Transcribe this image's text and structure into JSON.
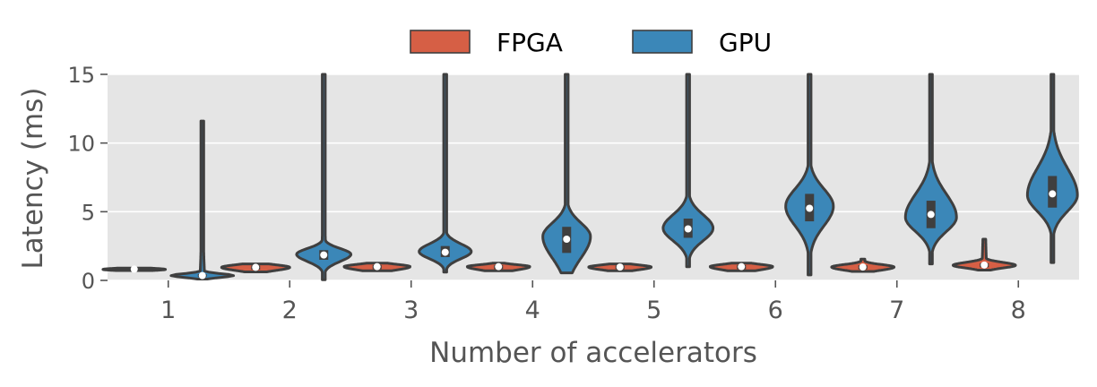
{
  "chart_data": {
    "type": "violin",
    "xlabel": "Number of accelerators",
    "ylabel": "Latency (ms)",
    "categories": [
      "1",
      "2",
      "3",
      "4",
      "5",
      "6",
      "7",
      "8"
    ],
    "ylim": [
      0,
      15
    ],
    "yticks": [
      0,
      5,
      10,
      15
    ],
    "grid": true,
    "legend_position": "top-center",
    "series": [
      {
        "name": "FPGA",
        "color": "#d65f45",
        "stats": [
          {
            "median": 0.82,
            "q1": 0.78,
            "q3": 0.86,
            "min": 0.72,
            "max": 0.9,
            "peak": 0.8,
            "peak_density": 0.55
          },
          {
            "median": 0.95,
            "q1": 0.78,
            "q3": 1.08,
            "min": 0.62,
            "max": 1.2,
            "peak": 0.95,
            "peak_density": 0.6
          },
          {
            "median": 1.0,
            "q1": 0.82,
            "q3": 1.12,
            "min": 0.7,
            "max": 1.25,
            "peak": 1.0,
            "peak_density": 0.58
          },
          {
            "median": 1.0,
            "q1": 0.82,
            "q3": 1.1,
            "min": 0.7,
            "max": 1.25,
            "peak": 1.0,
            "peak_density": 0.55
          },
          {
            "median": 0.97,
            "q1": 0.82,
            "q3": 1.08,
            "min": 0.7,
            "max": 1.2,
            "peak": 0.97,
            "peak_density": 0.55
          },
          {
            "median": 1.0,
            "q1": 0.82,
            "q3": 1.12,
            "min": 0.7,
            "max": 1.25,
            "peak": 1.0,
            "peak_density": 0.55
          },
          {
            "median": 0.97,
            "q1": 0.8,
            "q3": 1.1,
            "min": 0.65,
            "max": 1.55,
            "peak": 0.97,
            "peak_density": 0.55
          },
          {
            "median": 1.12,
            "q1": 0.95,
            "q3": 1.25,
            "min": 0.75,
            "max": 3.0,
            "peak": 1.1,
            "peak_density": 0.55
          }
        ]
      },
      {
        "name": "GPU",
        "color": "#3b87b8",
        "stats": [
          {
            "median": 0.35,
            "q1": 0.25,
            "q3": 0.45,
            "min": 0.1,
            "max": 11.6,
            "peak": 0.35,
            "peak_density": 0.55
          },
          {
            "median": 1.85,
            "q1": 1.5,
            "q3": 2.2,
            "min": 0.05,
            "max": 15,
            "peak": 1.9,
            "peak_density": 0.48
          },
          {
            "median": 2.05,
            "q1": 1.7,
            "q3": 2.5,
            "min": 0.6,
            "max": 15,
            "peak": 2.1,
            "peak_density": 0.46
          },
          {
            "median": 3.0,
            "q1": 2.0,
            "q3": 3.9,
            "min": 0.55,
            "max": 15,
            "peak": 3.2,
            "peak_density": 0.42
          },
          {
            "median": 3.75,
            "q1": 3.1,
            "q3": 4.5,
            "min": 1.0,
            "max": 15,
            "peak": 3.8,
            "peak_density": 0.44
          },
          {
            "median": 5.25,
            "q1": 4.3,
            "q3": 6.3,
            "min": 0.4,
            "max": 15,
            "peak": 5.4,
            "peak_density": 0.42
          },
          {
            "median": 4.8,
            "q1": 3.8,
            "q3": 5.8,
            "min": 1.2,
            "max": 15,
            "peak": 4.6,
            "peak_density": 0.45
          },
          {
            "median": 6.3,
            "q1": 5.3,
            "q3": 7.6,
            "min": 1.3,
            "max": 15,
            "peak": 6.2,
            "peak_density": 0.44
          }
        ]
      }
    ]
  }
}
